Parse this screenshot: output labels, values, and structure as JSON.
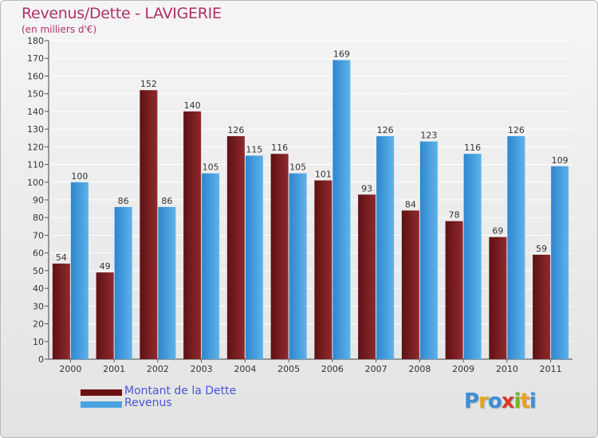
{
  "chart_data": {
    "type": "bar",
    "title": "Revenus/Dette - LAVIGERIE",
    "subtitle": "(en milliers d'€)",
    "categories": [
      "2000",
      "2001",
      "2002",
      "2003",
      "2004",
      "2005",
      "2006",
      "2007",
      "2008",
      "2009",
      "2010",
      "2011"
    ],
    "series": [
      {
        "name": "Montant de la Dette",
        "values": [
          54,
          49,
          152,
          140,
          126,
          116,
          101,
          93,
          84,
          78,
          69,
          59
        ],
        "color": "#7a1f22"
      },
      {
        "name": "Revenus",
        "values": [
          100,
          86,
          86,
          105,
          115,
          105,
          169,
          126,
          123,
          116,
          126,
          109
        ],
        "color": "#4aa3e0"
      }
    ],
    "ylim": [
      0,
      180
    ],
    "yticks": [
      0,
      10,
      20,
      30,
      40,
      50,
      60,
      70,
      80,
      90,
      100,
      110,
      120,
      130,
      140,
      150,
      160,
      170,
      180
    ],
    "grid": true,
    "legend_position": "bottom-left"
  },
  "logo": {
    "letters": [
      "P",
      "r",
      "o",
      "x",
      "i",
      "t",
      "i"
    ],
    "colors": [
      "#3c8fd8",
      "#e8a21e",
      "#3c8fd8",
      "#d93a2b",
      "#6fb52c",
      "#e8a21e",
      "#3c8fd8"
    ]
  },
  "colors": {
    "title": "#b0306a",
    "legend_text": "#4a55d4"
  }
}
